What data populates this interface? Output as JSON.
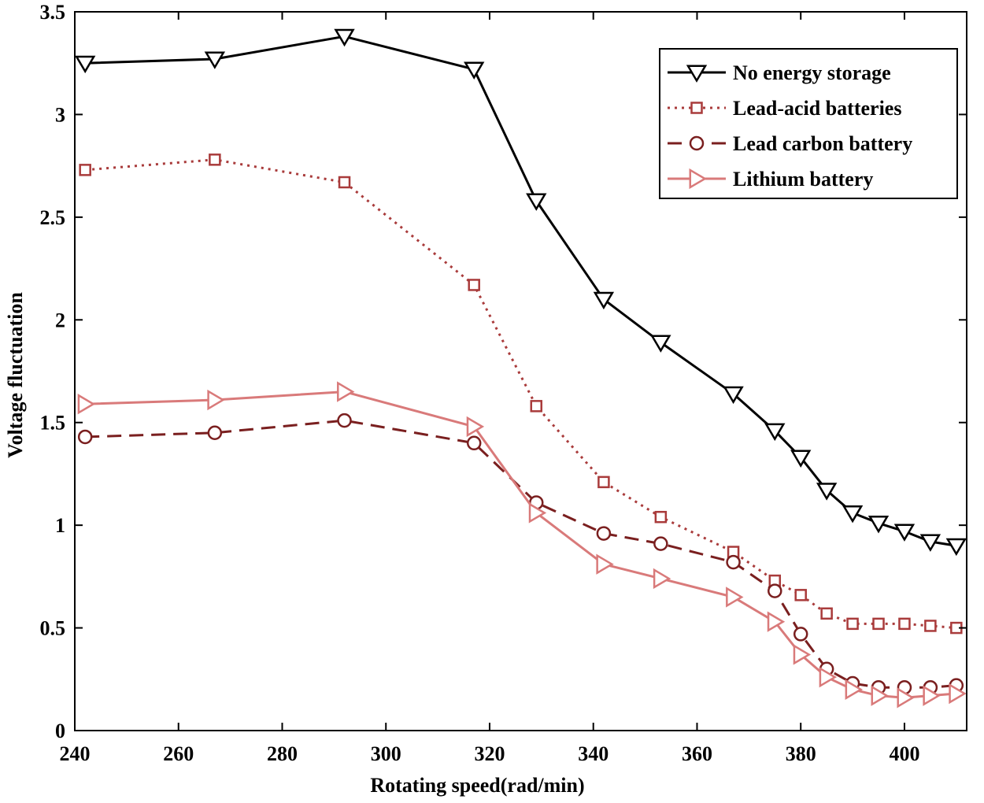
{
  "chart_data": {
    "type": "line",
    "title": "",
    "xlabel": "Rotating speed(rad/min)",
    "ylabel": "Voltage fluctuation",
    "xlim": [
      240,
      412
    ],
    "ylim": [
      0,
      3.5
    ],
    "xticks": [
      240,
      260,
      280,
      300,
      320,
      340,
      360,
      380,
      400
    ],
    "yticks": [
      0,
      0.5,
      1,
      1.5,
      2,
      2.5,
      3,
      3.5
    ],
    "xtick_labels": [
      "240",
      "260",
      "280",
      "300",
      "320",
      "340",
      "360",
      "380",
      "400"
    ],
    "ytick_labels": [
      "0",
      "0.5",
      "1",
      "1.5",
      "2",
      "2.5",
      "3",
      "3.5"
    ],
    "grid": false,
    "legend_position": "top-right",
    "x": [
      242,
      267,
      292,
      317,
      329,
      342,
      353,
      367,
      375,
      380,
      385,
      390,
      395,
      400,
      405,
      410
    ],
    "series": [
      {
        "name": "No energy storage",
        "color": "#000000",
        "dash": "solid",
        "marker": "triangle-down",
        "values": [
          3.25,
          3.27,
          3.38,
          3.22,
          2.58,
          2.1,
          1.89,
          1.64,
          1.46,
          1.33,
          1.17,
          1.06,
          1.01,
          0.97,
          0.92,
          0.9
        ]
      },
      {
        "name": "Lead-acid batteries",
        "color": "#a93b3b",
        "dash": "dotted",
        "marker": "square",
        "values": [
          2.73,
          2.78,
          2.67,
          2.17,
          1.58,
          1.21,
          1.04,
          0.87,
          0.73,
          0.66,
          0.57,
          0.52,
          0.52,
          0.52,
          0.51,
          0.5
        ]
      },
      {
        "name": "Lead carbon battery",
        "color": "#7a1f1f",
        "dash": "dashed",
        "marker": "circle",
        "values": [
          1.43,
          1.45,
          1.51,
          1.4,
          1.11,
          0.96,
          0.91,
          0.82,
          0.68,
          0.47,
          0.3,
          0.23,
          0.21,
          0.21,
          0.21,
          0.22
        ]
      },
      {
        "name": "Lithium battery",
        "color": "#d97a7a",
        "dash": "solid",
        "marker": "triangle-right",
        "values": [
          1.59,
          1.61,
          1.65,
          1.48,
          1.06,
          0.81,
          0.74,
          0.65,
          0.53,
          0.37,
          0.26,
          0.2,
          0.17,
          0.16,
          0.17,
          0.18
        ]
      }
    ]
  }
}
